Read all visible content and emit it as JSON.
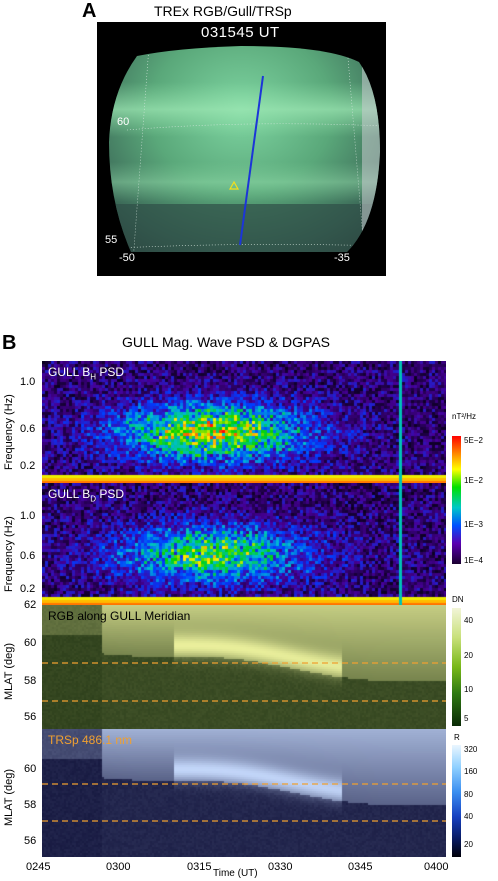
{
  "panel_a": {
    "letter": "A",
    "title": "TREx RGB/Gull/TRSp",
    "timestamp": "031545 UT",
    "lat_labels": [
      "60",
      "55"
    ],
    "lon_labels": [
      "-50",
      "-35"
    ]
  },
  "panel_b": {
    "letter": "B",
    "title": "GULL Mag. Wave PSD & DGPAS",
    "plots": [
      {
        "label_main": "GULL B",
        "label_sub": "H",
        "label_tail": " PSD",
        "ylabel": "Frequency (Hz)",
        "yticks": [
          "1.0",
          "0.6",
          "0.2"
        ]
      },
      {
        "label_main": "GULL B",
        "label_sub": "D",
        "label_tail": " PSD",
        "ylabel": "Frequency (Hz)",
        "yticks": [
          "1.0",
          "0.6",
          "0.2"
        ]
      },
      {
        "label": "RGB along GULL Meridian",
        "ylabel": "MLAT (deg)",
        "yticks": [
          "62",
          "60",
          "58",
          "56"
        ]
      },
      {
        "label": "TRSp 486.1 nm",
        "ylabel": "MLAT (deg)",
        "yticks": [
          "60",
          "58",
          "56"
        ]
      }
    ],
    "colorbars": [
      {
        "unit": "nT²/Hz",
        "ticks": [
          "5E−2",
          "1E−2",
          "1E−3",
          "1E−4"
        ]
      },
      {
        "unit": "DN",
        "ticks": [
          "40",
          "20",
          "10",
          "5"
        ]
      },
      {
        "unit": "R",
        "ticks": [
          "320",
          "160",
          "80",
          "40",
          "20"
        ]
      }
    ],
    "xticks": [
      "0245",
      "0300",
      "0315",
      "0330",
      "0345",
      "0400"
    ],
    "xlabel": "Time (UT)"
  }
}
